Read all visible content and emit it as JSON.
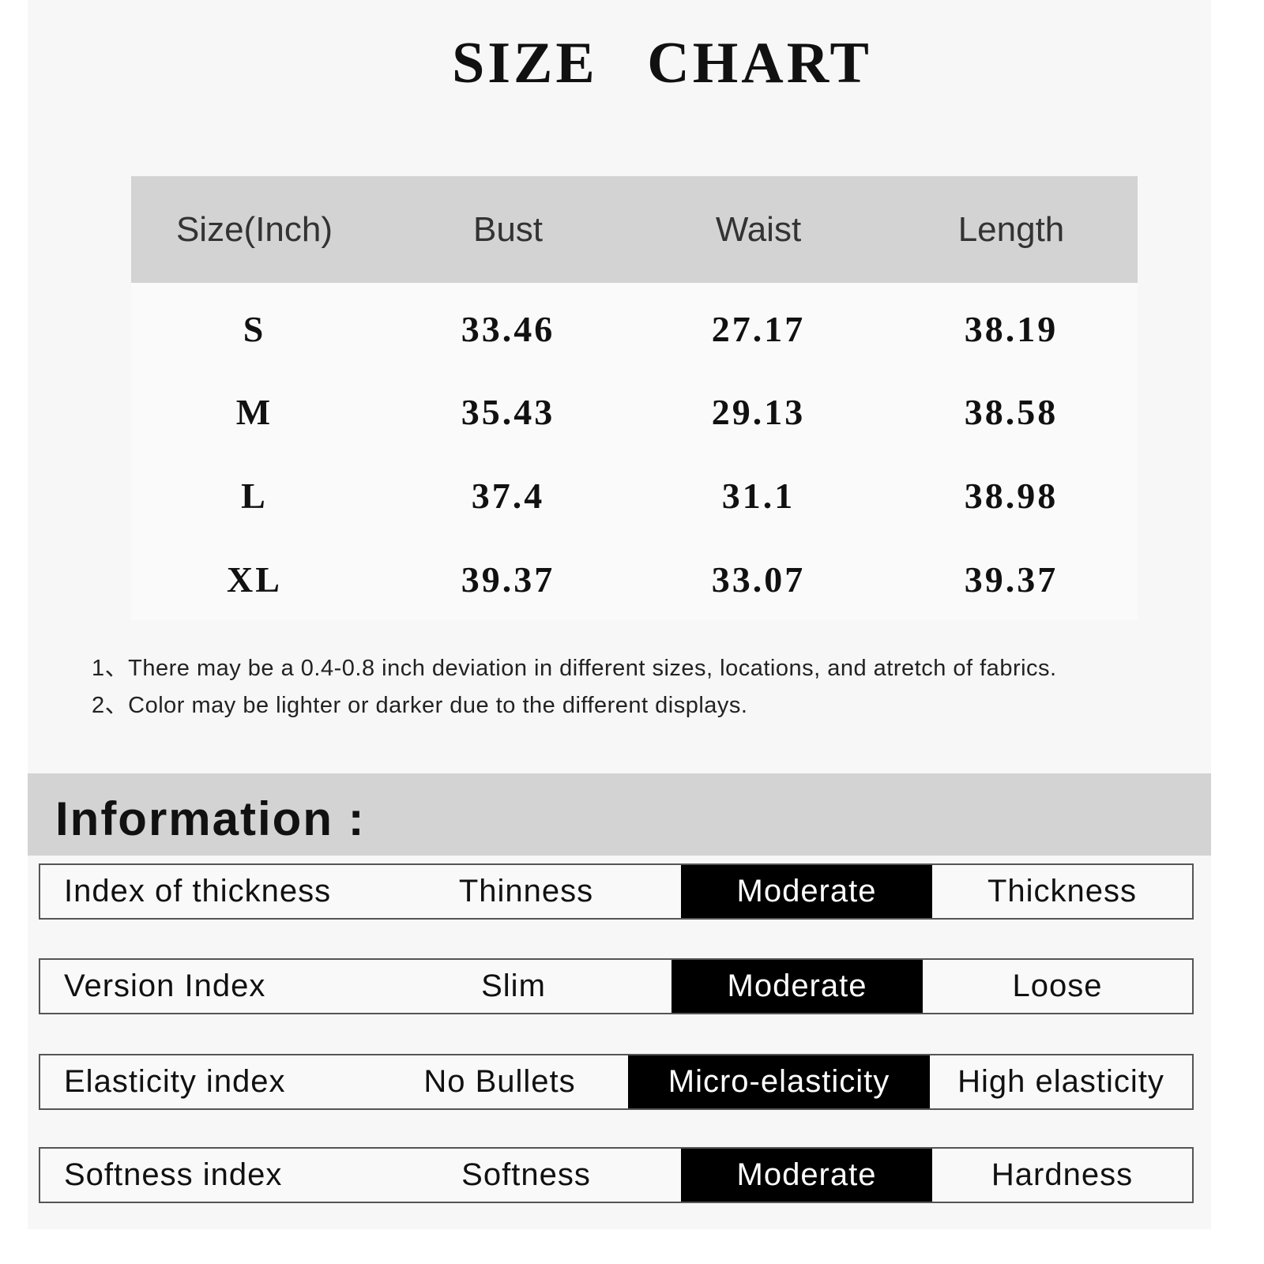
{
  "title": "SIZE CHART",
  "table": {
    "headers": [
      "Size(Inch)",
      "Bust",
      "Waist",
      "Length"
    ],
    "rows": [
      [
        "S",
        "33.46",
        "27.17",
        "38.19"
      ],
      [
        "M",
        "35.43",
        "29.13",
        "38.58"
      ],
      [
        "L",
        "37.4",
        "31.1",
        "38.98"
      ],
      [
        "XL",
        "39.37",
        "33.07",
        "39.37"
      ]
    ]
  },
  "notes": [
    "1、There may be a 0.4-0.8 inch deviation in different sizes, locations, and atretch of fabrics.",
    "2、Color may be lighter or darker due to the different displays."
  ],
  "information": {
    "title": "Information :",
    "rows": [
      {
        "label": "Index of thickness",
        "options": [
          "Thinness",
          "Moderate",
          "Thickness"
        ],
        "selected": "Moderate"
      },
      {
        "label": "Version Index",
        "options": [
          "Slim",
          "Moderate",
          "Loose"
        ],
        "selected": "Moderate"
      },
      {
        "label": "Elasticity index",
        "options": [
          "No Bullets",
          "Micro-elasticity",
          "High elasticity"
        ],
        "selected": "Micro-elasticity"
      },
      {
        "label": "Softness index",
        "options": [
          "Softness",
          "Moderate",
          "Hardness"
        ],
        "selected": "Moderate"
      }
    ]
  },
  "colors": {
    "header_bg": "#d3d3d3",
    "selected_bg": "#000000",
    "selected_text": "#ffffff"
  }
}
